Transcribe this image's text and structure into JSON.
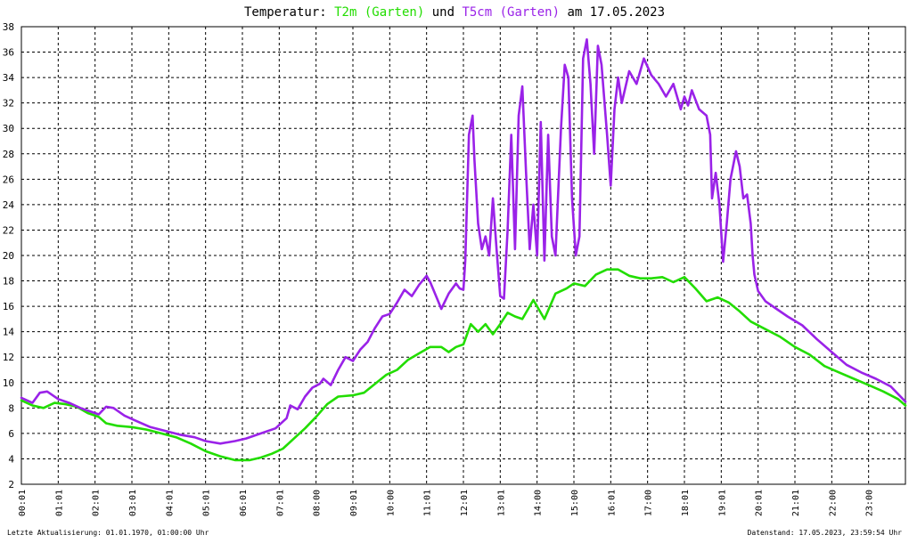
{
  "chart_data": {
    "type": "line",
    "title": {
      "prefix": "Temperatur: ",
      "series1_label": "T2m (Garten)",
      "conjunction": " und ",
      "series2_label": "T5cm (Garten)",
      "suffix": " am 17.05.2023"
    },
    "xlabel": "",
    "ylabel": "",
    "xlim": [
      0,
      24
    ],
    "ylim": [
      2,
      38
    ],
    "y_ticks": [
      2,
      4,
      6,
      8,
      10,
      12,
      14,
      16,
      18,
      20,
      22,
      24,
      26,
      28,
      30,
      32,
      34,
      36,
      38
    ],
    "x_ticks": [
      {
        "x": 0,
        "label": "00:01"
      },
      {
        "x": 1,
        "label": "01:01"
      },
      {
        "x": 2,
        "label": "02:01"
      },
      {
        "x": 3,
        "label": "03:01"
      },
      {
        "x": 4,
        "label": "04:01"
      },
      {
        "x": 5,
        "label": "05:01"
      },
      {
        "x": 6,
        "label": "06:01"
      },
      {
        "x": 7,
        "label": "07:01"
      },
      {
        "x": 8,
        "label": "08:00"
      },
      {
        "x": 9,
        "label": "09:01"
      },
      {
        "x": 10,
        "label": "10:00"
      },
      {
        "x": 11,
        "label": "11:01"
      },
      {
        "x": 12,
        "label": "12:01"
      },
      {
        "x": 13,
        "label": "13:01"
      },
      {
        "x": 14,
        "label": "14:00"
      },
      {
        "x": 15,
        "label": "15:00"
      },
      {
        "x": 16,
        "label": "16:01"
      },
      {
        "x": 17,
        "label": "17:00"
      },
      {
        "x": 18,
        "label": "18:01"
      },
      {
        "x": 19,
        "label": "19:01"
      },
      {
        "x": 20,
        "label": "20:01"
      },
      {
        "x": 21,
        "label": "21:01"
      },
      {
        "x": 22,
        "label": "22:00"
      },
      {
        "x": 23,
        "label": "23:00"
      }
    ],
    "grid": true,
    "legend": "in title",
    "series": [
      {
        "name": "T2m (Garten)",
        "color": "#22dd00",
        "points": [
          [
            0,
            8.6
          ],
          [
            0.3,
            8.2
          ],
          [
            0.6,
            8.0
          ],
          [
            0.9,
            8.4
          ],
          [
            1.2,
            8.3
          ],
          [
            1.5,
            8.1
          ],
          [
            1.8,
            7.6
          ],
          [
            2.1,
            7.3
          ],
          [
            2.3,
            6.8
          ],
          [
            2.6,
            6.6
          ],
          [
            3.0,
            6.5
          ],
          [
            3.4,
            6.3
          ],
          [
            3.8,
            6.0
          ],
          [
            4.2,
            5.7
          ],
          [
            4.6,
            5.2
          ],
          [
            5.0,
            4.6
          ],
          [
            5.4,
            4.2
          ],
          [
            5.8,
            3.9
          ],
          [
            6.2,
            3.9
          ],
          [
            6.5,
            4.1
          ],
          [
            6.8,
            4.4
          ],
          [
            7.1,
            4.8
          ],
          [
            7.4,
            5.6
          ],
          [
            7.7,
            6.4
          ],
          [
            8.0,
            7.3
          ],
          [
            8.3,
            8.3
          ],
          [
            8.6,
            8.9
          ],
          [
            9.0,
            9.0
          ],
          [
            9.3,
            9.2
          ],
          [
            9.6,
            9.9
          ],
          [
            9.9,
            10.6
          ],
          [
            10.2,
            11.0
          ],
          [
            10.5,
            11.8
          ],
          [
            10.8,
            12.3
          ],
          [
            11.1,
            12.8
          ],
          [
            11.4,
            12.8
          ],
          [
            11.6,
            12.4
          ],
          [
            11.8,
            12.8
          ],
          [
            12.0,
            13.0
          ],
          [
            12.2,
            14.6
          ],
          [
            12.4,
            14.0
          ],
          [
            12.6,
            14.6
          ],
          [
            12.8,
            13.8
          ],
          [
            13.0,
            14.6
          ],
          [
            13.2,
            15.5
          ],
          [
            13.4,
            15.2
          ],
          [
            13.6,
            15.0
          ],
          [
            13.9,
            16.5
          ],
          [
            14.2,
            15.0
          ],
          [
            14.5,
            17.0
          ],
          [
            14.8,
            17.4
          ],
          [
            15.0,
            17.8
          ],
          [
            15.3,
            17.6
          ],
          [
            15.6,
            18.5
          ],
          [
            15.9,
            18.9
          ],
          [
            16.2,
            18.9
          ],
          [
            16.5,
            18.4
          ],
          [
            16.8,
            18.2
          ],
          [
            17.1,
            18.2
          ],
          [
            17.4,
            18.3
          ],
          [
            17.7,
            17.9
          ],
          [
            18.0,
            18.3
          ],
          [
            18.3,
            17.4
          ],
          [
            18.6,
            16.4
          ],
          [
            18.9,
            16.7
          ],
          [
            19.2,
            16.3
          ],
          [
            19.5,
            15.6
          ],
          [
            19.8,
            14.8
          ],
          [
            20.2,
            14.2
          ],
          [
            20.6,
            13.6
          ],
          [
            21.0,
            12.8
          ],
          [
            21.4,
            12.2
          ],
          [
            21.8,
            11.3
          ],
          [
            22.2,
            10.8
          ],
          [
            22.6,
            10.3
          ],
          [
            23.0,
            9.8
          ],
          [
            23.4,
            9.3
          ],
          [
            23.8,
            8.7
          ],
          [
            24.0,
            8.2
          ]
        ]
      },
      {
        "name": "T5cm (Garten)",
        "color": "#9a22e8",
        "points": [
          [
            0,
            8.8
          ],
          [
            0.3,
            8.4
          ],
          [
            0.5,
            9.2
          ],
          [
            0.7,
            9.3
          ],
          [
            1.0,
            8.7
          ],
          [
            1.3,
            8.4
          ],
          [
            1.6,
            8.0
          ],
          [
            1.9,
            7.7
          ],
          [
            2.1,
            7.5
          ],
          [
            2.3,
            8.1
          ],
          [
            2.5,
            8.0
          ],
          [
            2.8,
            7.4
          ],
          [
            3.1,
            7.0
          ],
          [
            3.5,
            6.5
          ],
          [
            3.9,
            6.2
          ],
          [
            4.3,
            5.9
          ],
          [
            4.7,
            5.7
          ],
          [
            5.0,
            5.4
          ],
          [
            5.4,
            5.2
          ],
          [
            5.8,
            5.4
          ],
          [
            6.1,
            5.6
          ],
          [
            6.5,
            6.0
          ],
          [
            6.9,
            6.4
          ],
          [
            7.2,
            7.2
          ],
          [
            7.3,
            8.2
          ],
          [
            7.5,
            7.9
          ],
          [
            7.7,
            8.9
          ],
          [
            7.9,
            9.6
          ],
          [
            8.1,
            9.9
          ],
          [
            8.2,
            10.3
          ],
          [
            8.4,
            9.8
          ],
          [
            8.6,
            11.0
          ],
          [
            8.8,
            12.0
          ],
          [
            9.0,
            11.7
          ],
          [
            9.2,
            12.6
          ],
          [
            9.4,
            13.2
          ],
          [
            9.6,
            14.3
          ],
          [
            9.8,
            15.2
          ],
          [
            10.0,
            15.4
          ],
          [
            10.2,
            16.3
          ],
          [
            10.4,
            17.3
          ],
          [
            10.6,
            16.8
          ],
          [
            10.8,
            17.7
          ],
          [
            11.0,
            18.4
          ],
          [
            11.1,
            17.9
          ],
          [
            11.3,
            16.5
          ],
          [
            11.4,
            15.8
          ],
          [
            11.6,
            17.0
          ],
          [
            11.8,
            17.8
          ],
          [
            11.9,
            17.4
          ],
          [
            12.0,
            17.3
          ],
          [
            12.05,
            19.6
          ],
          [
            12.15,
            29.5
          ],
          [
            12.25,
            31.0
          ],
          [
            12.3,
            27.5
          ],
          [
            12.4,
            22.5
          ],
          [
            12.5,
            20.5
          ],
          [
            12.6,
            21.5
          ],
          [
            12.7,
            20.0
          ],
          [
            12.8,
            24.5
          ],
          [
            12.9,
            20.5
          ],
          [
            13.0,
            16.8
          ],
          [
            13.1,
            16.6
          ],
          [
            13.2,
            22.0
          ],
          [
            13.3,
            29.5
          ],
          [
            13.4,
            20.5
          ],
          [
            13.5,
            31.0
          ],
          [
            13.6,
            33.3
          ],
          [
            13.7,
            26.5
          ],
          [
            13.8,
            20.5
          ],
          [
            13.9,
            24.0
          ],
          [
            14.0,
            20.0
          ],
          [
            14.1,
            30.5
          ],
          [
            14.2,
            19.6
          ],
          [
            14.3,
            29.5
          ],
          [
            14.4,
            21.5
          ],
          [
            14.5,
            20.0
          ],
          [
            14.65,
            30.0
          ],
          [
            14.75,
            35.0
          ],
          [
            14.85,
            34.0
          ],
          [
            14.95,
            24.5
          ],
          [
            15.05,
            20.0
          ],
          [
            15.15,
            21.5
          ],
          [
            15.25,
            35.5
          ],
          [
            15.35,
            37.0
          ],
          [
            15.45,
            33.5
          ],
          [
            15.55,
            28.0
          ],
          [
            15.65,
            36.5
          ],
          [
            15.75,
            35.0
          ],
          [
            15.9,
            29.5
          ],
          [
            16.0,
            25.5
          ],
          [
            16.1,
            31.5
          ],
          [
            16.2,
            34.0
          ],
          [
            16.3,
            32.0
          ],
          [
            16.5,
            34.5
          ],
          [
            16.7,
            33.5
          ],
          [
            16.9,
            35.5
          ],
          [
            17.1,
            34.2
          ],
          [
            17.3,
            33.5
          ],
          [
            17.5,
            32.5
          ],
          [
            17.7,
            33.5
          ],
          [
            17.9,
            31.5
          ],
          [
            18.0,
            32.5
          ],
          [
            18.1,
            31.8
          ],
          [
            18.2,
            33.0
          ],
          [
            18.4,
            31.5
          ],
          [
            18.6,
            31.0
          ],
          [
            18.7,
            29.5
          ],
          [
            18.75,
            24.5
          ],
          [
            18.85,
            26.5
          ],
          [
            18.95,
            24.0
          ],
          [
            19.05,
            19.5
          ],
          [
            19.15,
            22.5
          ],
          [
            19.25,
            26.0
          ],
          [
            19.4,
            28.2
          ],
          [
            19.5,
            27.0
          ],
          [
            19.6,
            24.5
          ],
          [
            19.7,
            24.8
          ],
          [
            19.8,
            22.5
          ],
          [
            19.85,
            20.0
          ],
          [
            19.9,
            18.5
          ],
          [
            20.0,
            17.2
          ],
          [
            20.2,
            16.4
          ],
          [
            20.5,
            15.8
          ],
          [
            20.8,
            15.2
          ],
          [
            21.2,
            14.5
          ],
          [
            21.6,
            13.4
          ],
          [
            22.0,
            12.4
          ],
          [
            22.4,
            11.4
          ],
          [
            22.8,
            10.8
          ],
          [
            23.2,
            10.3
          ],
          [
            23.6,
            9.7
          ],
          [
            24.0,
            8.5
          ]
        ]
      }
    ],
    "footer": {
      "left": "Letzte Aktualisierung: 01.01.1970, 01:00:00 Uhr",
      "right": "Datenstand: 17.05.2023, 23:59:54 Uhr"
    }
  }
}
